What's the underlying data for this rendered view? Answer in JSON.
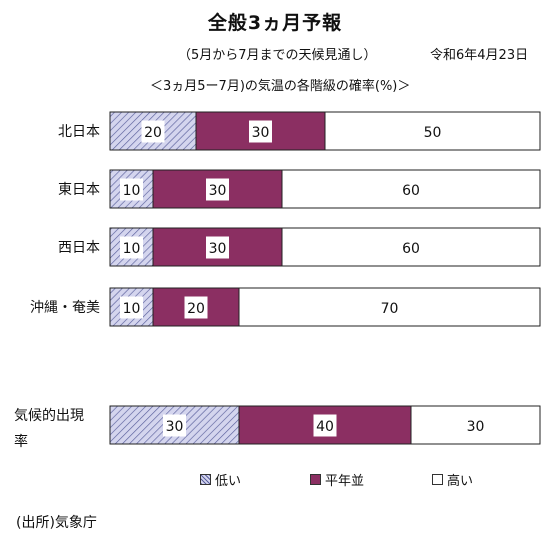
{
  "header": {
    "title": "全般3ヵ月予報",
    "subtitle": "（5月から7月までの天候見通し）",
    "date": "令和6年4月23日",
    "caption": "＜3ヵ月5ー7月)の気温の各階級の確率(%)＞"
  },
  "source": "(出所)気象庁",
  "colors": {
    "low": "#c7c8e6",
    "normal": "#8b2f62",
    "high": "#ffffff",
    "outline": "#222222"
  },
  "chart_data": {
    "type": "bar",
    "orientation": "horizontal",
    "stacked": true,
    "categories": [
      "北日本",
      "東日本",
      "西日本",
      "沖縄・奄美",
      "気候的出現率"
    ],
    "series": [
      {
        "name": "低い",
        "values": [
          20,
          10,
          10,
          10,
          30
        ]
      },
      {
        "name": "平年並",
        "values": [
          30,
          30,
          30,
          20,
          40
        ]
      },
      {
        "name": "高い",
        "values": [
          50,
          60,
          60,
          70,
          30
        ]
      }
    ],
    "xlim": [
      0,
      100
    ],
    "legend_position": "bottom"
  }
}
